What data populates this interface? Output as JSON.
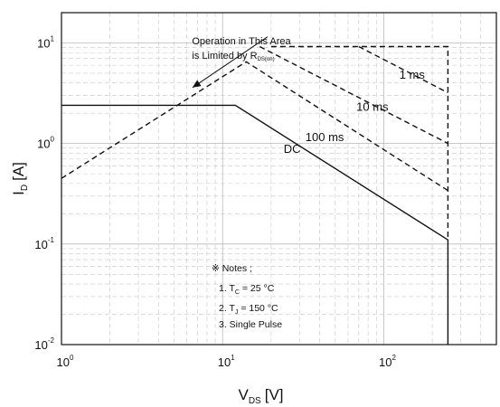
{
  "chart_data": {
    "type": "line",
    "title": "",
    "xlabel": {
      "main": "V",
      "sub": "DS",
      "unit": "[V]"
    },
    "ylabel": {
      "main": "I",
      "sub": "D",
      "unit": "[A]"
    },
    "x_scale": "log",
    "y_scale": "log",
    "xlim": [
      1,
      500
    ],
    "ylim": [
      0.01,
      20
    ],
    "grid": true,
    "x_ticks": [
      {
        "value": 1,
        "base": "10",
        "exp": "0"
      },
      {
        "value": 10,
        "base": "10",
        "exp": "1"
      },
      {
        "value": 100,
        "base": "10",
        "exp": "2"
      }
    ],
    "y_ticks": [
      {
        "value": 0.01,
        "base": "10",
        "exp": "-2"
      },
      {
        "value": 0.1,
        "base": "10",
        "exp": "-1"
      },
      {
        "value": 1,
        "base": "10",
        "exp": "0"
      },
      {
        "value": 10,
        "base": "10",
        "exp": "1"
      }
    ],
    "series": [
      {
        "name": "DC",
        "style": "solid",
        "x": [
          1,
          12,
          250,
          250
        ],
        "y": [
          2.4,
          2.4,
          0.11,
          0.01
        ]
      },
      {
        "name": "100 ms",
        "style": "dashed",
        "x": [
          1,
          14,
          250
        ],
        "y": [
          0.45,
          6.5,
          0.34
        ]
      },
      {
        "name": "10 ms",
        "style": "dashed",
        "x": [
          17,
          250
        ],
        "y": [
          9.2,
          1.0
        ]
      },
      {
        "name": "1 ms",
        "style": "dashed",
        "x": [
          70,
          250
        ],
        "y": [
          9.2,
          3.2
        ]
      },
      {
        "name": "",
        "style": "dashed",
        "x": [
          20,
          250,
          250
        ],
        "y": [
          9.2,
          9.2,
          0.11
        ]
      }
    ],
    "curve_labels": [
      {
        "text": "1 ms",
        "x": 150,
        "y": 4.8
      },
      {
        "text": "10 ms",
        "x": 85,
        "y": 2.3
      },
      {
        "text": "100 ms",
        "x": 43,
        "y": 1.15
      },
      {
        "text": "DC",
        "x": 27,
        "y": 0.88
      }
    ],
    "annotation": {
      "line1": "Operation in This Area",
      "line2_main": "is Limited by R",
      "line2_sub": "DS(on)",
      "arrow_from": [
        19,
        11.5
      ],
      "arrow_to": [
        6.5,
        3.6
      ]
    },
    "notes": {
      "title": "※ Notes ;",
      "n1_main": "1. T",
      "n1_sub": "C",
      "n1_rest": " = 25 °C",
      "n2_main": "2. T",
      "n2_sub": "J",
      "n2_rest": " = 150 °C",
      "n3": "3. Single Pulse"
    }
  }
}
